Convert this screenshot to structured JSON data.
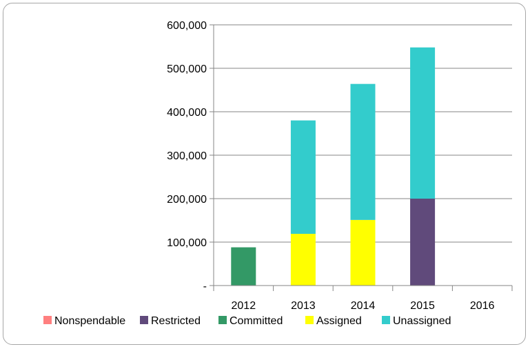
{
  "chart_data": {
    "type": "bar",
    "stacked": true,
    "title": "",
    "xlabel": "",
    "ylabel": "",
    "categories": [
      "2012",
      "2013",
      "2014",
      "2015",
      "2016"
    ],
    "series": [
      {
        "name": "Nonspendable",
        "color": "#ff7f7f",
        "values": [
          0,
          0,
          0,
          0,
          0
        ]
      },
      {
        "name": "Restricted",
        "color": "#604a7b",
        "values": [
          0,
          0,
          0,
          200000,
          0
        ]
      },
      {
        "name": "Committed",
        "color": "#339966",
        "values": [
          88000,
          0,
          0,
          0,
          0
        ]
      },
      {
        "name": "Assigned",
        "color": "#ffff00",
        "values": [
          0,
          119000,
          151000,
          0,
          0
        ]
      },
      {
        "name": "Unassigned",
        "color": "#33cccc",
        "values": [
          0,
          261000,
          313000,
          348000,
          0
        ]
      }
    ],
    "ylim": [
      0,
      600000
    ],
    "yticks": [
      0,
      100000,
      200000,
      300000,
      400000,
      500000,
      600000
    ],
    "ytick_labels": [
      "-",
      "100,000",
      "200,000",
      "300,000",
      "400,000",
      "500,000",
      "600,000"
    ],
    "grid": true,
    "legend_position": "bottom"
  }
}
